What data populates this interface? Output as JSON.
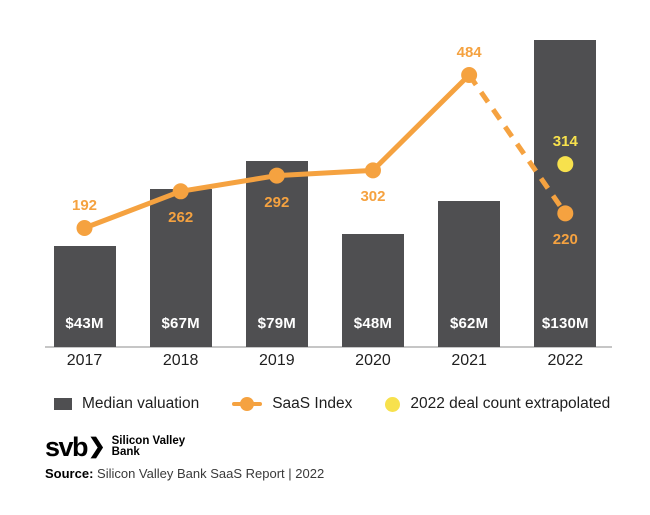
{
  "chart_data": {
    "type": "bar",
    "title": "",
    "xlabel": "",
    "ylabel": "",
    "categories": [
      "2017",
      "2018",
      "2019",
      "2020",
      "2021",
      "2022"
    ],
    "series": [
      {
        "name": "Median valuation",
        "type": "bar",
        "unit": "$M",
        "values": [
          43,
          67,
          79,
          48,
          62,
          130
        ],
        "labels": [
          "$43M",
          "$67M",
          "$79M",
          "$48M",
          "$62M",
          "$130M"
        ],
        "color": "#4F4F51",
        "label_color": "#FFFFFF"
      },
      {
        "name": "SaaS Index",
        "type": "line",
        "values": [
          192,
          262,
          292,
          302,
          484,
          220
        ],
        "label_positions": [
          "above",
          "below",
          "below",
          "below",
          "above",
          "below"
        ],
        "dashed_segment_from": "2021",
        "dashed_segment_to": "2022",
        "color": "#F5A240"
      },
      {
        "name": "2022 deal count extrapolated",
        "type": "point",
        "category": "2022",
        "value": 314,
        "label_position": "above",
        "color": "#F7E14D"
      }
    ],
    "axis": {
      "baseline_color": "#C6C6C6",
      "grid": "off"
    },
    "legend_position": "bottom"
  },
  "legend": {
    "items": [
      {
        "label": "Median valuation",
        "swatch": "square",
        "color": "#4F4F51"
      },
      {
        "label": "SaaS Index",
        "swatch": "line-dot",
        "color": "#F5A240"
      },
      {
        "label": "2022 deal count extrapolated",
        "swatch": "dot",
        "color": "#F7E14D"
      }
    ]
  },
  "footer": {
    "logo": {
      "wordmark": "svb",
      "chevron": "❯",
      "name_line1": "Silicon Valley",
      "name_line2": "Bank"
    },
    "source_label": "Source:",
    "source_text": " Silicon Valley Bank SaaS Report | 2022"
  }
}
